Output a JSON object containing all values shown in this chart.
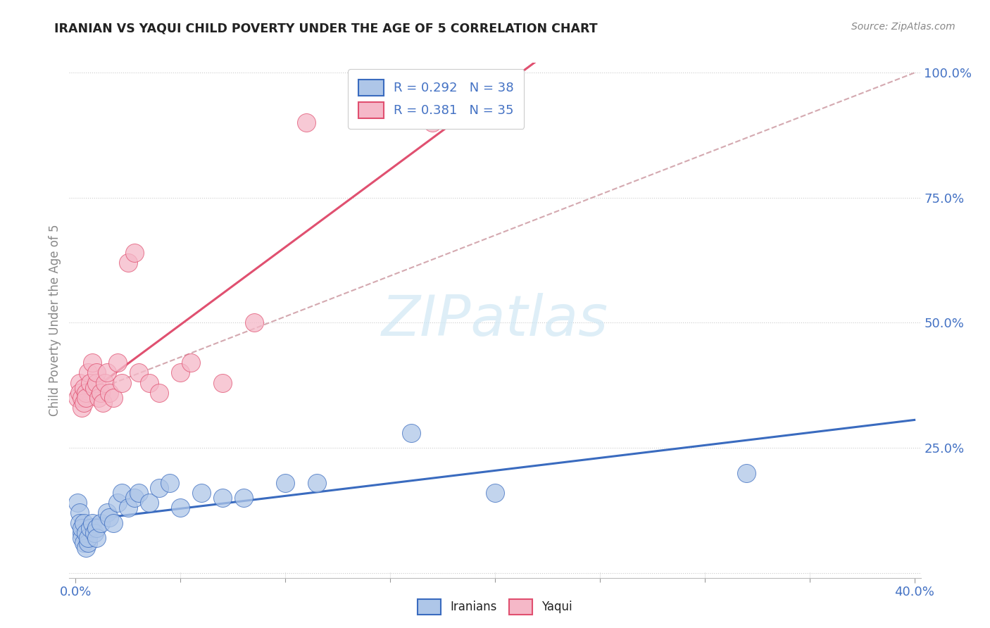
{
  "title": "IRANIAN VS YAQUI CHILD POVERTY UNDER THE AGE OF 5 CORRELATION CHART",
  "source": "Source: ZipAtlas.com",
  "ylabel": "Child Poverty Under the Age of 5",
  "iranians_R": 0.292,
  "iranians_N": 38,
  "yaqui_R": 0.381,
  "yaqui_N": 35,
  "iranians_color": "#aec6e8",
  "yaqui_color": "#f5b8c8",
  "iranians_line_color": "#3a6bbf",
  "yaqui_line_color": "#e05070",
  "ref_line_color": "#d0a0a8",
  "watermark_color": "#d0e8f5",
  "iranians_x": [
    0.001,
    0.002,
    0.002,
    0.003,
    0.003,
    0.003,
    0.004,
    0.004,
    0.005,
    0.005,
    0.006,
    0.006,
    0.007,
    0.008,
    0.009,
    0.01,
    0.01,
    0.012,
    0.015,
    0.016,
    0.018,
    0.02,
    0.022,
    0.025,
    0.028,
    0.03,
    0.035,
    0.04,
    0.045,
    0.05,
    0.06,
    0.07,
    0.08,
    0.1,
    0.115,
    0.16,
    0.2,
    0.32
  ],
  "iranians_y": [
    0.14,
    0.12,
    0.1,
    0.08,
    0.07,
    0.09,
    0.1,
    0.06,
    0.08,
    0.05,
    0.06,
    0.07,
    0.09,
    0.1,
    0.08,
    0.09,
    0.07,
    0.1,
    0.12,
    0.11,
    0.1,
    0.14,
    0.16,
    0.13,
    0.15,
    0.16,
    0.14,
    0.17,
    0.18,
    0.13,
    0.16,
    0.15,
    0.15,
    0.18,
    0.18,
    0.28,
    0.16,
    0.2
  ],
  "yaqui_x": [
    0.001,
    0.002,
    0.002,
    0.003,
    0.003,
    0.004,
    0.004,
    0.005,
    0.005,
    0.006,
    0.007,
    0.008,
    0.009,
    0.01,
    0.01,
    0.011,
    0.012,
    0.013,
    0.014,
    0.015,
    0.016,
    0.018,
    0.02,
    0.022,
    0.025,
    0.028,
    0.03,
    0.035,
    0.04,
    0.05,
    0.055,
    0.07,
    0.085,
    0.11,
    0.17
  ],
  "yaqui_y": [
    0.35,
    0.38,
    0.36,
    0.35,
    0.33,
    0.37,
    0.34,
    0.36,
    0.35,
    0.4,
    0.38,
    0.42,
    0.37,
    0.38,
    0.4,
    0.35,
    0.36,
    0.34,
    0.38,
    0.4,
    0.36,
    0.35,
    0.42,
    0.38,
    0.62,
    0.64,
    0.4,
    0.38,
    0.36,
    0.4,
    0.42,
    0.38,
    0.5,
    0.9,
    0.9
  ],
  "xlim": [
    0.0,
    0.4
  ],
  "ylim": [
    0.0,
    1.0
  ],
  "x_ticks": [
    0.0,
    0.4
  ],
  "x_tick_labels": [
    "0.0%",
    "40.0%"
  ],
  "x_minor_ticks": [
    0.05,
    0.1,
    0.15,
    0.2,
    0.25,
    0.3,
    0.35
  ],
  "y_ticks": [
    0.0,
    0.25,
    0.5,
    0.75,
    1.0
  ],
  "y_tick_labels": [
    "",
    "25.0%",
    "50.0%",
    "75.0%",
    "100.0%"
  ]
}
